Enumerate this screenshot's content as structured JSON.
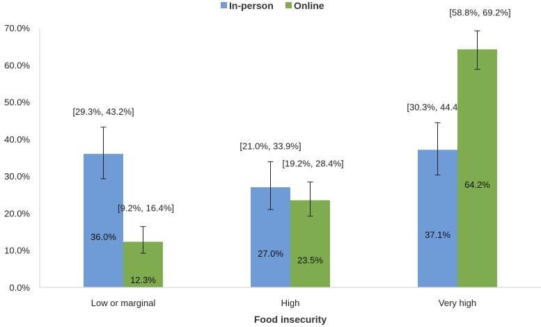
{
  "chart_data": {
    "type": "bar",
    "xlabel": "Food insecurity",
    "ylabel": "",
    "ylim": [
      0,
      70
    ],
    "yticks": [
      "0.0%",
      "10.0%",
      "20.0%",
      "30.0%",
      "40.0%",
      "50.0%",
      "60.0%",
      "70.0%"
    ],
    "ytick_values": [
      0,
      10,
      20,
      30,
      40,
      50,
      60,
      70
    ],
    "categories": [
      "Low or marginal",
      "High",
      "Very high"
    ],
    "legend_position": "top-center",
    "grid": false,
    "series": [
      {
        "name": "In-person",
        "color": "#6f9bd6",
        "values": [
          36.0,
          27.0,
          37.1
        ],
        "value_labels": [
          "36.0%",
          "27.0%",
          "37.1%"
        ],
        "ci_low": [
          29.3,
          21.0,
          30.3
        ],
        "ci_high": [
          43.2,
          33.9,
          44.4
        ],
        "ci_labels": [
          "[29.3%, 43.2%]",
          "[21.0%, 33.9%]",
          "[30.3%, 44.4%]"
        ]
      },
      {
        "name": "Online",
        "color": "#7fac4e",
        "values": [
          12.3,
          23.5,
          64.2
        ],
        "value_labels": [
          "12.3%",
          "23.5%",
          "64.2%"
        ],
        "ci_low": [
          9.2,
          19.2,
          58.8
        ],
        "ci_high": [
          16.4,
          28.4,
          69.2
        ],
        "ci_labels": [
          "[9.2%, 16.4%]",
          "[19.2%, 28.4%]",
          "[58.8%, 69.2%]"
        ]
      }
    ]
  }
}
